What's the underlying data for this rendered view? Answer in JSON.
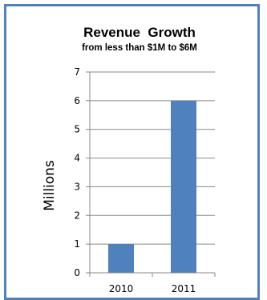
{
  "chart_data": {
    "type": "bar",
    "title": "Revenue  Growth",
    "subtitle": "from less than $1M to $6M",
    "xlabel": "",
    "ylabel": "Millions",
    "categories": [
      "2010",
      "2011"
    ],
    "values": [
      1,
      6
    ],
    "ylim": [
      0,
      7
    ],
    "yticks": [
      "0",
      "1",
      "2",
      "3",
      "4",
      "5",
      "6",
      "7"
    ],
    "grid": true,
    "legend": "none",
    "bar_color": "#4f81bd"
  }
}
